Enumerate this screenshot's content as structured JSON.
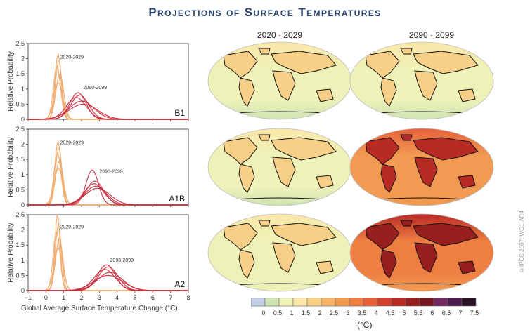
{
  "title": "Projections of Surface Temperatures",
  "panel_ylabel": "Relative Probability",
  "xlabel": "Global Average Surface Temperature Change (°C)",
  "map_columns": [
    "2020 - 2029",
    "2090 - 2099"
  ],
  "colorbar": {
    "unit": "(°C)",
    "ticks": [
      "0",
      "0.5",
      "1",
      "1.5",
      "2",
      "2.5",
      "3",
      "3.5",
      "4",
      "4.5",
      "5",
      "5.5",
      "6",
      "6.5",
      "7",
      "7.5"
    ],
    "colors": [
      "#c3cfe3",
      "#cfe3b3",
      "#eef2b8",
      "#fbe7a8",
      "#f8cf86",
      "#f5b467",
      "#f29a52",
      "#ee7e42",
      "#e5603a",
      "#d24030",
      "#b82b25",
      "#97201e",
      "#741a1f",
      "#702a60",
      "#4d1d4e",
      "#2a1226"
    ]
  },
  "credit": "©IPCC 2007: WG1-AR4",
  "chart_data": [
    {
      "type": "line",
      "scenario": "B1",
      "xlim": [
        -1,
        8
      ],
      "ylim": [
        0,
        2.5
      ],
      "xticks": [
        -1,
        0,
        1,
        2,
        3,
        4,
        5,
        6,
        7,
        8
      ],
      "yticks": [
        0,
        0.5,
        1,
        1.5,
        2,
        2.5
      ],
      "annotations": [
        {
          "text": "2020-2029",
          "x": 0.8,
          "y": 2.0
        },
        {
          "text": "2090-2099",
          "x": 2.1,
          "y": 1.0
        }
      ],
      "periods": [
        {
          "period": "2020-2029",
          "color": "#f0a868",
          "curves": [
            {
              "peak": 0.68,
              "height": 2.15,
              "width": 0.17
            },
            {
              "peak": 0.72,
              "height": 1.95,
              "width": 0.18
            },
            {
              "peak": 0.62,
              "height": 1.75,
              "width": 0.2
            },
            {
              "peak": 0.78,
              "height": 1.5,
              "width": 0.22
            },
            {
              "peak": 0.7,
              "height": 1.2,
              "width": 0.25
            }
          ]
        },
        {
          "period": "2090-2099",
          "color": "#c8283a",
          "curves": [
            {
              "peak": 1.8,
              "height": 0.88,
              "width": 0.45
            },
            {
              "peak": 1.9,
              "height": 0.8,
              "width": 0.5
            },
            {
              "peak": 1.7,
              "height": 0.72,
              "width": 0.55
            },
            {
              "peak": 2.0,
              "height": 0.6,
              "width": 0.7
            },
            {
              "peak": 2.1,
              "height": 0.5,
              "width": 0.8
            }
          ]
        }
      ]
    },
    {
      "type": "line",
      "scenario": "A1B",
      "xlim": [
        -1,
        8
      ],
      "ylim": [
        0,
        2.5
      ],
      "xticks": [
        -1,
        0,
        1,
        2,
        3,
        4,
        5,
        6,
        7,
        8
      ],
      "yticks": [
        0,
        0.5,
        1,
        1.5,
        2,
        2.5
      ],
      "annotations": [
        {
          "text": "2020-2029",
          "x": 0.8,
          "y": 2.0
        },
        {
          "text": "2090-2099",
          "x": 3.0,
          "y": 1.05
        }
      ],
      "periods": [
        {
          "period": "2020-2029",
          "color": "#f0a868",
          "curves": [
            {
              "peak": 0.68,
              "height": 2.08,
              "width": 0.18
            },
            {
              "peak": 0.72,
              "height": 1.9,
              "width": 0.18
            },
            {
              "peak": 0.65,
              "height": 1.7,
              "width": 0.2
            },
            {
              "peak": 0.75,
              "height": 1.45,
              "width": 0.22
            },
            {
              "peak": 0.7,
              "height": 1.2,
              "width": 0.25
            }
          ]
        },
        {
          "period": "2090-2099",
          "color": "#c8283a",
          "curves": [
            {
              "peak": 2.6,
              "height": 1.15,
              "width": 0.35
            },
            {
              "peak": 2.75,
              "height": 0.78,
              "width": 0.5
            },
            {
              "peak": 2.7,
              "height": 0.7,
              "width": 0.55
            },
            {
              "peak": 2.8,
              "height": 0.62,
              "width": 0.6
            },
            {
              "peak": 2.9,
              "height": 0.55,
              "width": 0.7
            }
          ]
        }
      ]
    },
    {
      "type": "line",
      "scenario": "A2",
      "xlim": [
        -1,
        8
      ],
      "ylim": [
        0,
        2.5
      ],
      "xticks": [
        -1,
        0,
        1,
        2,
        3,
        4,
        5,
        6,
        7,
        8
      ],
      "yticks": [
        0,
        0.5,
        1,
        1.5,
        2,
        2.5
      ],
      "annotations": [
        {
          "text": "2020-2029",
          "x": 0.8,
          "y": 2.05
        },
        {
          "text": "2090-2099",
          "x": 3.6,
          "y": 0.95
        }
      ],
      "periods": [
        {
          "period": "2020-2029",
          "color": "#f0a868",
          "curves": [
            {
              "peak": 0.65,
              "height": 2.5,
              "width": 0.15
            },
            {
              "peak": 0.7,
              "height": 2.2,
              "width": 0.17
            },
            {
              "peak": 0.6,
              "height": 1.95,
              "width": 0.19
            },
            {
              "peak": 0.75,
              "height": 1.7,
              "width": 0.21
            },
            {
              "peak": 0.7,
              "height": 1.4,
              "width": 0.24
            }
          ]
        },
        {
          "period": "2090-2099",
          "color": "#c8283a",
          "curves": [
            {
              "peak": 3.4,
              "height": 0.85,
              "width": 0.5
            },
            {
              "peak": 3.5,
              "height": 0.78,
              "width": 0.55
            },
            {
              "peak": 3.3,
              "height": 0.7,
              "width": 0.6
            },
            {
              "peak": 3.6,
              "height": 0.6,
              "width": 0.7
            },
            {
              "peak": 3.5,
              "height": 0.5,
              "width": 0.8
            }
          ]
        }
      ]
    }
  ]
}
